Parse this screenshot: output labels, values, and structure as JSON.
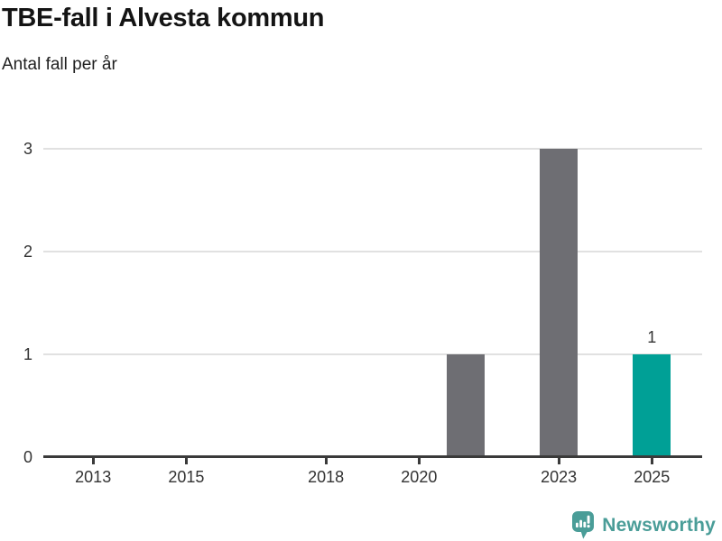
{
  "chart_data": {
    "type": "bar",
    "title": "TBE-fall i Alvesta kommun",
    "subtitle": "Antal fall per år",
    "xlabel": "",
    "ylabel": "",
    "x": [
      2021,
      2023,
      2025
    ],
    "values": [
      1,
      3,
      1
    ],
    "bar_colors": [
      "#6E6E73",
      "#6E6E73",
      "#00A096"
    ],
    "value_labels": [
      null,
      null,
      "1"
    ],
    "xticks": [
      2013,
      2015,
      2018,
      2020,
      2023,
      2025
    ],
    "yticks": [
      0,
      1,
      2,
      3
    ],
    "xlim": [
      2011.93,
      2026.08
    ],
    "ylim": [
      0,
      3.18
    ],
    "grid": "horizontal",
    "legend": "none",
    "default_bar_color": "#6E6E73",
    "highlight_color": "#00A096"
  },
  "colors": {
    "axis": "#3A3A3A",
    "grid": "#E1E1E1",
    "tick_text": "#333333",
    "title_text": "#141414",
    "brand": "#4A9D98"
  },
  "branding": {
    "logo_text": "Newsworthy"
  }
}
